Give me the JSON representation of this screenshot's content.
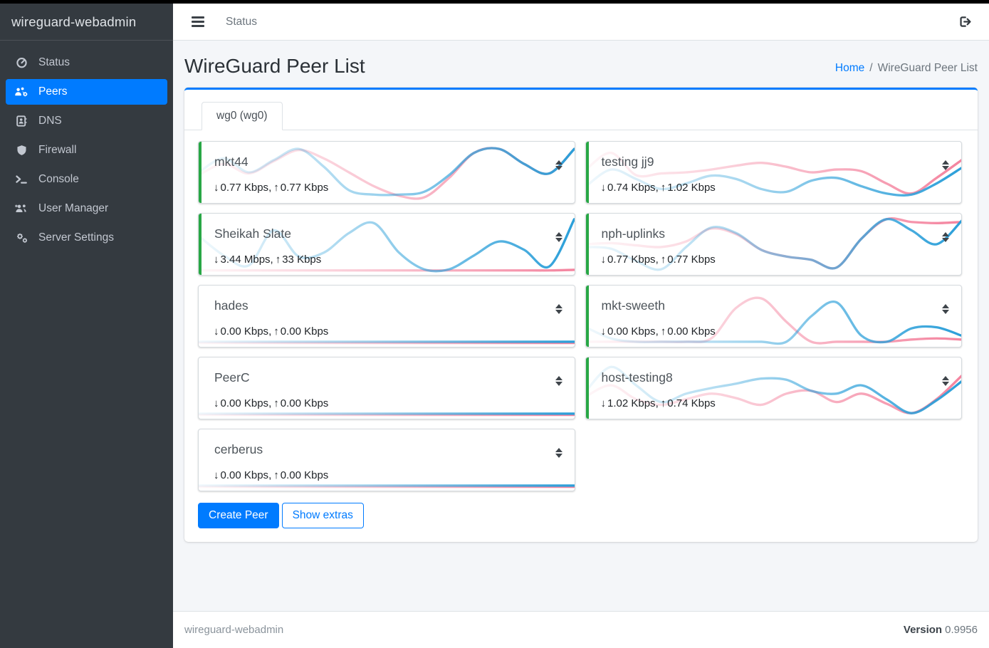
{
  "app": {
    "brand": "wireguard-webadmin"
  },
  "topbar": {
    "link_label": "Status"
  },
  "page": {
    "title": "WireGuard Peer List"
  },
  "breadcrumb": {
    "home": "Home",
    "separator": "/",
    "current": "WireGuard Peer List"
  },
  "sidebar": {
    "items": [
      {
        "label": "Status",
        "icon": "gauge",
        "active": false
      },
      {
        "label": "Peers",
        "icon": "users-gear",
        "active": true
      },
      {
        "label": "DNS",
        "icon": "address-book",
        "active": false
      },
      {
        "label": "Firewall",
        "icon": "shield",
        "active": false
      },
      {
        "label": "Console",
        "icon": "terminal",
        "active": false
      },
      {
        "label": "User Manager",
        "icon": "users",
        "active": false
      },
      {
        "label": "Server Settings",
        "icon": "gears",
        "active": false
      }
    ]
  },
  "tab": {
    "label": "wg0 (wg0)"
  },
  "icons": {
    "down_arrow": "↓",
    "up_arrow": "↑",
    "rate_separator": ", "
  },
  "peers": [
    {
      "name": "mkt44",
      "down": "0.77 Kbps",
      "up": "0.77 Kbps",
      "connected": true,
      "spark": {
        "pink": [
          0.55,
          0.35,
          0.52,
          0.3,
          0.1,
          0.25,
          0.5,
          0.75,
          0.92,
          0.95,
          0.6,
          0.15,
          0.08,
          0.35,
          0.52,
          0.08
        ],
        "blue": [
          0.5,
          0.25,
          0.5,
          0.28,
          0.08,
          0.4,
          0.82,
          0.9,
          0.9,
          0.85,
          0.55,
          0.15,
          0.08,
          0.35,
          0.52,
          0.08
        ]
      }
    },
    {
      "name": "testing jj9",
      "down": "0.74 Kbps",
      "up": "1.02 Kbps",
      "connected": true,
      "spark": {
        "pink": [
          0.45,
          0.15,
          0.55,
          0.52,
          0.5,
          0.45,
          0.38,
          0.33,
          0.4,
          0.5,
          0.45,
          0.48,
          0.7,
          0.88,
          0.6,
          0.28
        ],
        "blue": [
          0.75,
          0.45,
          0.62,
          0.8,
          0.7,
          0.56,
          0.62,
          0.8,
          0.85,
          0.65,
          0.6,
          0.75,
          0.88,
          0.9,
          0.7,
          0.42
        ]
      }
    },
    {
      "name": "Sheikah Slate",
      "down": "3.44 Mbps",
      "up": "33 Kbps",
      "connected": true,
      "spark": {
        "pink": [
          0.97,
          0.97,
          0.97,
          0.97,
          0.97,
          0.97,
          0.97,
          0.97,
          0.97,
          0.97,
          0.97,
          0.97,
          0.97,
          0.97,
          0.97,
          0.96
        ],
        "blue": [
          0.35,
          0.7,
          0.88,
          0.25,
          0.72,
          0.65,
          0.3,
          0.12,
          0.65,
          0.95,
          0.95,
          0.7,
          0.45,
          0.6,
          0.9,
          0.05
        ]
      }
    },
    {
      "name": "nph-uplinks",
      "down": "0.77 Kbps",
      "up": "0.77 Kbps",
      "connected": true,
      "spark": {
        "pink": [
          0.5,
          0.48,
          0.52,
          0.55,
          0.45,
          0.22,
          0.32,
          0.6,
          0.72,
          0.78,
          0.92,
          0.4,
          0.05,
          0.1,
          0.12,
          0.1
        ],
        "blue": [
          0.55,
          0.58,
          0.8,
          0.95,
          0.55,
          0.2,
          0.3,
          0.6,
          0.72,
          0.78,
          0.92,
          0.4,
          0.05,
          0.25,
          0.5,
          0.08
        ]
      }
    },
    {
      "name": "hades",
      "down": "0.00 Kbps",
      "up": "0.00 Kbps",
      "connected": false,
      "spark": {
        "pink": [
          0.98,
          0.98,
          0.98,
          0.98,
          0.98,
          0.98,
          0.98,
          0.98,
          0.98,
          0.98,
          0.98,
          0.98,
          0.98,
          0.98,
          0.98,
          0.98
        ],
        "blue": [
          0.96,
          0.96,
          0.96,
          0.96,
          0.96,
          0.96,
          0.96,
          0.96,
          0.96,
          0.96,
          0.96,
          0.96,
          0.96,
          0.96,
          0.96,
          0.96
        ]
      }
    },
    {
      "name": "mkt-sweeth",
      "down": "0.00 Kbps",
      "up": "0.00 Kbps",
      "connected": true,
      "spark": {
        "pink": [
          0.96,
          0.96,
          0.96,
          0.96,
          0.96,
          0.9,
          0.35,
          0.18,
          0.6,
          0.96,
          0.96,
          0.96,
          0.96,
          0.92,
          0.9,
          0.92
        ],
        "blue": [
          0.7,
          0.9,
          0.96,
          0.96,
          0.96,
          0.96,
          0.96,
          0.96,
          0.96,
          0.5,
          0.25,
          0.85,
          0.96,
          0.72,
          0.7,
          0.85
        ]
      }
    },
    {
      "name": "PeerC",
      "down": "0.00 Kbps",
      "up": "0.00 Kbps",
      "connected": false,
      "spark": {
        "pink": [
          0.98,
          0.98,
          0.98,
          0.98,
          0.98,
          0.98,
          0.98,
          0.98,
          0.98,
          0.98,
          0.98,
          0.98,
          0.98,
          0.98,
          0.98,
          0.98
        ],
        "blue": [
          0.96,
          0.96,
          0.96,
          0.96,
          0.96,
          0.96,
          0.96,
          0.96,
          0.96,
          0.96,
          0.96,
          0.96,
          0.96,
          0.96,
          0.96,
          0.96
        ]
      }
    },
    {
      "name": "host-testing8",
      "down": "1.02 Kbps",
      "up": "0.74 Kbps",
      "connected": true,
      "spark": {
        "pink": [
          0.65,
          0.45,
          0.7,
          0.8,
          0.7,
          0.6,
          0.68,
          0.8,
          0.6,
          0.55,
          0.75,
          0.6,
          0.78,
          0.95,
          0.7,
          0.28
        ],
        "blue": [
          0.55,
          0.12,
          0.45,
          0.75,
          0.6,
          0.5,
          0.42,
          0.33,
          0.35,
          0.55,
          0.6,
          0.45,
          0.7,
          0.95,
          0.72,
          0.38
        ]
      }
    },
    {
      "name": "cerberus",
      "down": "0.00 Kbps",
      "up": "0.00 Kbps",
      "connected": false,
      "spark": {
        "pink": [
          0.98,
          0.98,
          0.98,
          0.98,
          0.98,
          0.98,
          0.98,
          0.98,
          0.98,
          0.98,
          0.98,
          0.98,
          0.98,
          0.98,
          0.98,
          0.98
        ],
        "blue": [
          0.96,
          0.96,
          0.96,
          0.96,
          0.96,
          0.96,
          0.96,
          0.96,
          0.96,
          0.96,
          0.96,
          0.96,
          0.96,
          0.96,
          0.96,
          0.96
        ]
      }
    }
  ],
  "buttons": {
    "create_label": "Create Peer",
    "extras_label": "Show extras"
  },
  "footer": {
    "brand": "wireguard-webadmin",
    "version_label": "Version",
    "version_value": "0.9956"
  },
  "colors": {
    "accent": "#007bff",
    "connected_green": "#28a745",
    "spark_blue": "#2b9fd9",
    "spark_pink": "#f4849f"
  }
}
